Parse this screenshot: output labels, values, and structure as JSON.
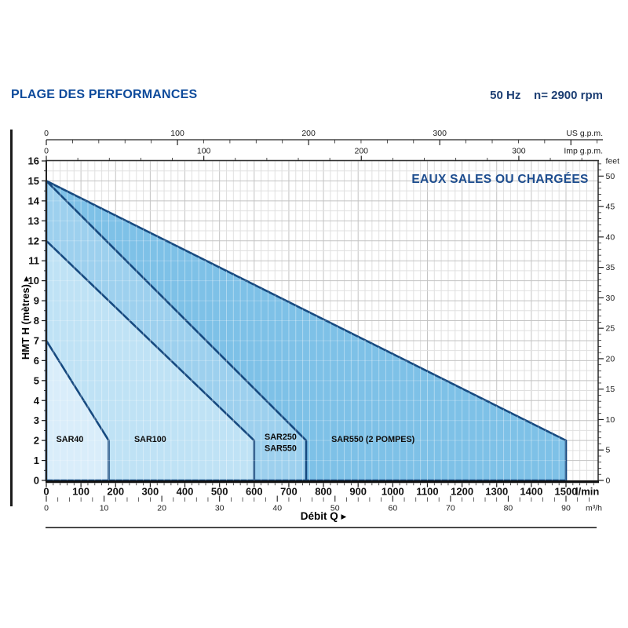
{
  "header": {
    "title": "PLAGE DES PERFORMANCES",
    "frequency": "50 Hz",
    "speed": "n= 2900 rpm"
  },
  "colors": {
    "title_blue": "#0d4a9b",
    "header_navy": "#1c3e73",
    "inside_title_navy": "#1d4d8f",
    "region_stroke": "#16497f",
    "grid_minor": "#e0e0e0",
    "grid_major": "#c3c3c3",
    "axis_dark": "#1a1a1a"
  },
  "chart_data": {
    "type": "area",
    "inside_title": "EAUX SALES OU CHARGÉES",
    "xlabel": "Débit Q",
    "ylabel": "HMT H (mètres)",
    "arrow": "▸",
    "x_axis": {
      "lmin": {
        "unit": "l/min",
        "min": 0,
        "max": 1500,
        "labels": [
          0,
          100,
          200,
          300,
          400,
          500,
          600,
          700,
          800,
          900,
          1000,
          1100,
          1200,
          1300,
          1400,
          1500
        ],
        "minor_step": 20
      },
      "m3h": {
        "unit": "m³/h",
        "min": 0,
        "max": 90,
        "labels": [
          0,
          10,
          20,
          30,
          40,
          50,
          60,
          70,
          80,
          90
        ],
        "minor_step": 2,
        "lmin_per_unit": 16.6667
      },
      "us_gpm": {
        "unit": "US g.p.m.",
        "labels": [
          0,
          100,
          200,
          300
        ],
        "minor_step": 20,
        "lmin_per_unit": 3.7854
      },
      "imp_gpm": {
        "unit": "Imp g.p.m.",
        "labels": [
          0,
          100,
          200,
          300
        ],
        "minor_step": 20,
        "lmin_per_unit": 4.5461
      }
    },
    "y_axis": {
      "metres": {
        "unit": "m",
        "min": 0,
        "max": 16,
        "labels": [
          0,
          1,
          2,
          3,
          4,
          5,
          6,
          7,
          8,
          9,
          10,
          11,
          12,
          13,
          14,
          15,
          16
        ],
        "minor_step": 0.5
      },
      "feet": {
        "unit": "feet",
        "min": 0,
        "max": 52,
        "labels": [
          0,
          5,
          10,
          15,
          20,
          25,
          30,
          35,
          40,
          45,
          50
        ],
        "minor_step": 1,
        "m_per_unit": 0.3048
      }
    },
    "series": [
      {
        "name": "SAR40",
        "points_q_h": [
          [
            0,
            7
          ],
          [
            180,
            2
          ],
          [
            180,
            0
          ],
          [
            0,
            0
          ]
        ],
        "fill": "#d9edfa",
        "label": {
          "lines": [
            "SAR40"
          ],
          "q": 68,
          "h": 1.93,
          "anchor": "middle"
        }
      },
      {
        "name": "SAR100",
        "points_q_h": [
          [
            0,
            12
          ],
          [
            600,
            2
          ],
          [
            600,
            0
          ],
          [
            0,
            0
          ]
        ],
        "fill": "#bfe2f5",
        "label": {
          "lines": [
            "SAR100"
          ],
          "q": 300,
          "h": 1.93,
          "anchor": "middle"
        }
      },
      {
        "name": "SAR250 / SAR550",
        "points_q_h": [
          [
            0,
            15
          ],
          [
            750,
            2
          ],
          [
            750,
            0
          ],
          [
            0,
            0
          ]
        ],
        "fill": "#9dd0ee",
        "label": {
          "lines": [
            "SAR250",
            "SAR550"
          ],
          "q": 630,
          "h": 2.04,
          "anchor": "start"
        }
      },
      {
        "name": "SAR550 (2 POMPES)",
        "points_q_h": [
          [
            0,
            15
          ],
          [
            1500,
            2
          ],
          [
            1500,
            0
          ],
          [
            0,
            0
          ]
        ],
        "fill": "#7ec1e7",
        "label": {
          "lines": [
            "SAR550 (2 POMPES)"
          ],
          "q": 943,
          "h": 1.93,
          "anchor": "middle"
        }
      }
    ]
  }
}
